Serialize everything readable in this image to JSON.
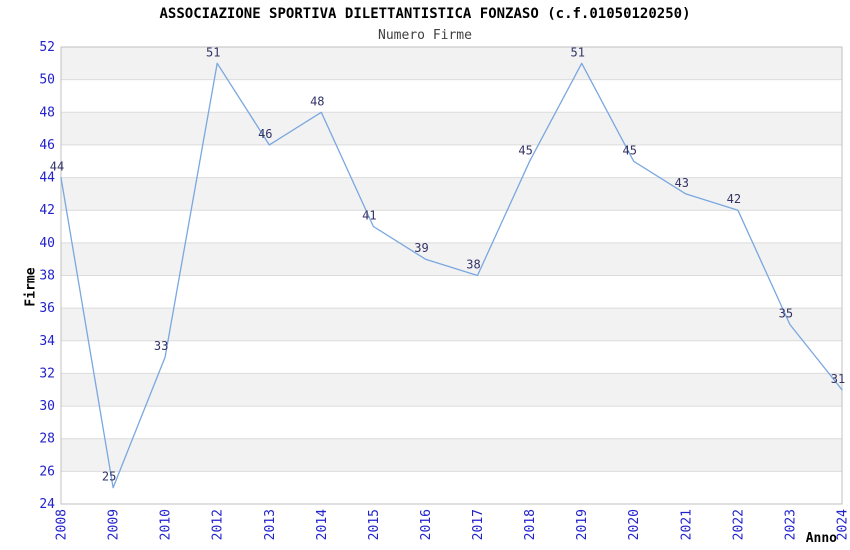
{
  "chart_data": {
    "type": "line",
    "title": "ASSOCIAZIONE SPORTIVA DILETTANTISTICA FONZASO (c.f.01050120250)",
    "subtitle": "Numero Firme",
    "xlabel": "Anno",
    "ylabel": "Firme",
    "categories": [
      "2008",
      "2009",
      "2010",
      "2012",
      "2013",
      "2014",
      "2015",
      "2016",
      "2017",
      "2018",
      "2019",
      "2020",
      "2021",
      "2022",
      "2023",
      "2024"
    ],
    "values": [
      44,
      25,
      33,
      51,
      46,
      48,
      41,
      39,
      38,
      45,
      51,
      45,
      43,
      42,
      35,
      31
    ],
    "ylim": [
      24,
      52
    ],
    "ytick_step": 2,
    "yticks": [
      24,
      26,
      28,
      30,
      32,
      34,
      36,
      38,
      40,
      42,
      44,
      46,
      48,
      50,
      52
    ],
    "grid": true,
    "legend": "none",
    "band_stripes": true,
    "x_tick_rotation": -90,
    "colors": {
      "line": "#7aa7e0",
      "tick_label": "#2222cc",
      "data_label": "#333366",
      "band_alt": "#f2f2f2",
      "band_main": "#ffffff",
      "grid_line": "#dcdcdc",
      "plot_border": "#c0c0c0",
      "title": "#000000",
      "subtitle": "#404040",
      "axis_label": "#000000"
    }
  }
}
